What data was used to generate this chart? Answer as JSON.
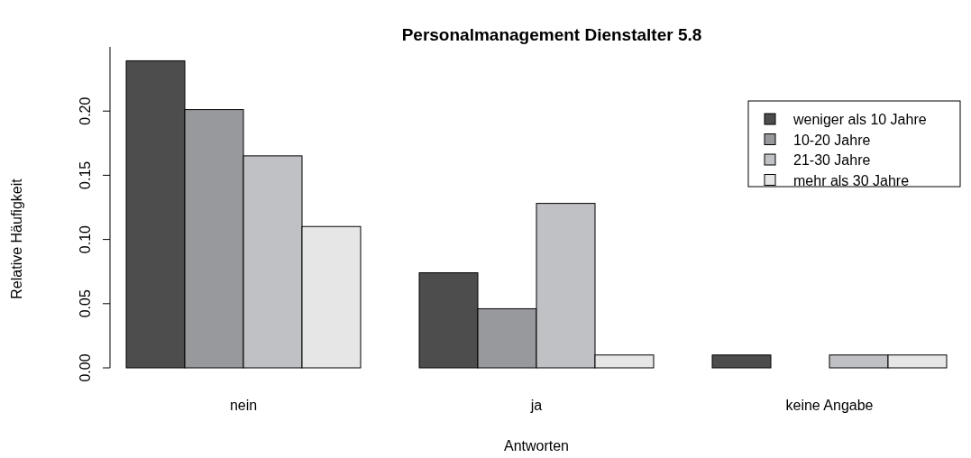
{
  "chart_data": {
    "type": "bar",
    "title": "Personalmanagement Dienstalter 5.8",
    "xlabel": "Antworten",
    "ylabel": "Relative Häufigkeit",
    "categories": [
      "nein",
      "ja",
      "keine Angabe"
    ],
    "series": [
      {
        "name": "weniger als 10 Jahre",
        "color": "#4d4d4d",
        "values": [
          0.239,
          0.074,
          0.01
        ]
      },
      {
        "name": "10-20 Jahre",
        "color": "#98999c",
        "values": [
          0.201,
          0.046,
          0
        ]
      },
      {
        "name": "21-30 Jahre",
        "color": "#c0c1c4",
        "values": [
          0.165,
          0.128,
          0.01
        ]
      },
      {
        "name": "mehr als 30 Jahre",
        "color": "#e6e6e7",
        "values": [
          0.11,
          0.01,
          0.01
        ]
      }
    ],
    "ylim": [
      0,
      0.25
    ],
    "yticks": [
      {
        "value": 0,
        "label": "0.00"
      },
      {
        "value": 0.05,
        "label": "0.05"
      },
      {
        "value": 0.1,
        "label": "0.10"
      },
      {
        "value": 0.15,
        "label": "0.15"
      },
      {
        "value": 0.2,
        "label": "0.20"
      }
    ],
    "grid": false,
    "legend": "top right"
  }
}
